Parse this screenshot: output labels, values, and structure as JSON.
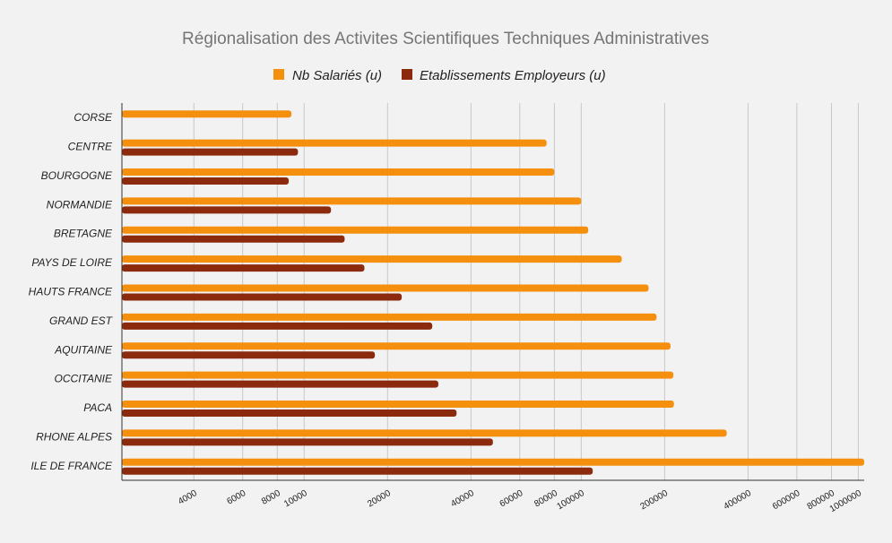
{
  "chart_data": {
    "type": "bar",
    "orientation": "horizontal",
    "title": "Régionalisation des Activites Scientifiques Techniques Administratives",
    "xlabel": "",
    "ylabel": "",
    "x_scale": "log",
    "xlim": [
      2200,
      1050000
    ],
    "x_ticks": [
      4000,
      6000,
      8000,
      10000,
      20000,
      40000,
      60000,
      80000,
      100000,
      200000,
      400000,
      600000,
      800000,
      1000000
    ],
    "x_tick_labels": [
      "4000",
      "6000",
      "8000",
      "10000",
      "20000",
      "40000",
      "60000",
      "80000",
      "100000",
      "200000",
      "400000",
      "600000",
      "800000",
      "1000000"
    ],
    "grid": true,
    "legend_position": "top",
    "categories": [
      "CORSE",
      "CENTRE",
      "BOURGOGNE",
      "NORMANDIE",
      "BRETAGNE",
      "PAYS DE LOIRE",
      "HAUTS FRANCE",
      "GRAND EST",
      "AQUITAINE",
      "OCCITANIE",
      "PACA",
      "RHONE ALPES",
      "ILE DE FRANCE"
    ],
    "series": [
      {
        "name": "Nb Salariés (u)",
        "color": "#f5900e",
        "values": [
          9000,
          75000,
          80000,
          100000,
          106000,
          140000,
          175000,
          187000,
          210000,
          215000,
          216000,
          335000,
          1050000
        ]
      },
      {
        "name": "Etablissements Employeurs (u)",
        "color": "#8b2a0d",
        "values": [
          null,
          9500,
          8800,
          12500,
          14000,
          16500,
          22500,
          29000,
          18000,
          30500,
          35500,
          48000,
          110000
        ]
      }
    ]
  }
}
